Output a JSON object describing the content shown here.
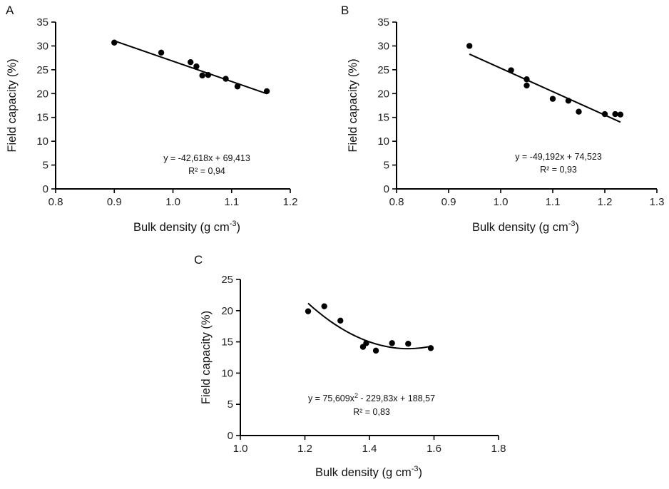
{
  "chart_data": [
    {
      "panel": "A",
      "type": "scatter",
      "xlabel": "Bulk density (g cm",
      "xlabel_sup": "-3",
      "xlabel_end": ")",
      "ylabel": "Field capacity (%)",
      "xlim": [
        0.8,
        1.2
      ],
      "ylim": [
        0,
        35
      ],
      "xticks": [
        "0.8",
        "0.9",
        "1.0",
        "1.1",
        "1.2"
      ],
      "xtick_values": [
        0.8,
        0.9,
        1.0,
        1.1,
        1.2
      ],
      "yticks": [
        "0",
        "5",
        "10",
        "15",
        "20",
        "25",
        "30",
        "35"
      ],
      "ytick_values": [
        0,
        5,
        10,
        15,
        20,
        25,
        30,
        35
      ],
      "grid": false,
      "points": [
        {
          "x": 0.9,
          "y": 30.7
        },
        {
          "x": 0.98,
          "y": 28.6
        },
        {
          "x": 1.03,
          "y": 26.6
        },
        {
          "x": 1.04,
          "y": 25.7
        },
        {
          "x": 1.05,
          "y": 23.8
        },
        {
          "x": 1.06,
          "y": 23.9
        },
        {
          "x": 1.09,
          "y": 23.1
        },
        {
          "x": 1.11,
          "y": 21.5
        },
        {
          "x": 1.16,
          "y": 20.5
        }
      ],
      "fit": {
        "kind": "linear",
        "coefficients": [
          -42.618,
          69.413
        ],
        "x_range": [
          0.9,
          1.16
        ]
      },
      "equation": "y = -42,618x + 69,413",
      "r2_label": "R² = 0,94"
    },
    {
      "panel": "B",
      "type": "scatter",
      "xlabel": "Bulk density (g cm",
      "xlabel_sup": "-3",
      "xlabel_end": ")",
      "ylabel": "Field capacity (%)",
      "xlim": [
        0.8,
        1.3
      ],
      "ylim": [
        0,
        35
      ],
      "xticks": [
        "0.8",
        "0.9",
        "1.0",
        "1.1",
        "1.2",
        "1.3"
      ],
      "xtick_values": [
        0.8,
        0.9,
        1.0,
        1.1,
        1.2,
        1.3
      ],
      "yticks": [
        "0",
        "5",
        "10",
        "15",
        "20",
        "25",
        "30",
        "35"
      ],
      "ytick_values": [
        0,
        5,
        10,
        15,
        20,
        25,
        30,
        35
      ],
      "grid": false,
      "points": [
        {
          "x": 0.94,
          "y": 30.0
        },
        {
          "x": 1.02,
          "y": 24.9
        },
        {
          "x": 1.05,
          "y": 23.0
        },
        {
          "x": 1.05,
          "y": 21.7
        },
        {
          "x": 1.1,
          "y": 18.9
        },
        {
          "x": 1.13,
          "y": 18.5
        },
        {
          "x": 1.15,
          "y": 16.2
        },
        {
          "x": 1.2,
          "y": 15.7
        },
        {
          "x": 1.22,
          "y": 15.7
        },
        {
          "x": 1.23,
          "y": 15.6
        }
      ],
      "fit": {
        "kind": "linear",
        "coefficients": [
          -49.192,
          74.523
        ],
        "x_range": [
          0.94,
          1.23
        ]
      },
      "equation": "y = -49,192x + 74,523",
      "r2_label": "R² = 0,93"
    },
    {
      "panel": "C",
      "type": "scatter",
      "xlabel": "Bulk density (g cm",
      "xlabel_sup": "-3",
      "xlabel_end": ")",
      "ylabel": "Field capacity (%)",
      "xlim": [
        1.0,
        1.8
      ],
      "ylim": [
        0,
        25
      ],
      "xticks": [
        "1.0",
        "1.2",
        "1.4",
        "1.6",
        "1.8"
      ],
      "xtick_values": [
        1.0,
        1.2,
        1.4,
        1.6,
        1.8
      ],
      "yticks": [
        "0",
        "5",
        "10",
        "15",
        "20",
        "25"
      ],
      "ytick_values": [
        0,
        5,
        10,
        15,
        20,
        25
      ],
      "grid": false,
      "points": [
        {
          "x": 1.21,
          "y": 19.9
        },
        {
          "x": 1.26,
          "y": 20.7
        },
        {
          "x": 1.31,
          "y": 18.4
        },
        {
          "x": 1.38,
          "y": 14.2
        },
        {
          "x": 1.39,
          "y": 14.8
        },
        {
          "x": 1.42,
          "y": 13.6
        },
        {
          "x": 1.47,
          "y": 14.8
        },
        {
          "x": 1.52,
          "y": 14.7
        },
        {
          "x": 1.59,
          "y": 14.0
        }
      ],
      "fit": {
        "kind": "quadratic",
        "coefficients": [
          75.609,
          -229.83,
          188.57
        ],
        "x_range": [
          1.21,
          1.59
        ]
      },
      "equation_parts": [
        "y = 75,609x",
        "2",
        " - 229,83x + 188,57"
      ],
      "equation": "y = 75,609x² - 229,83x + 188,57",
      "r2_label": "R² = 0,83"
    }
  ]
}
